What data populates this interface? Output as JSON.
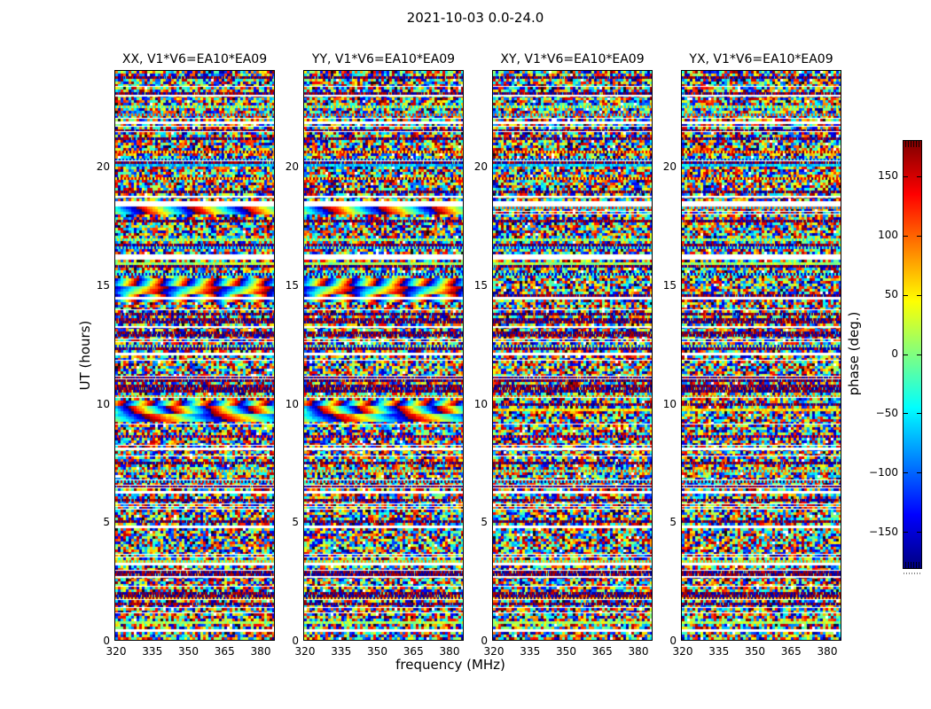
{
  "figure": {
    "title": "2021-10-03 0.0-24.0",
    "background": "#ffffff"
  },
  "axes": {
    "xlabel": "frequency (MHz)",
    "ylabel": "UT (hours)",
    "xtick_labels": [
      "320",
      "335",
      "350",
      "365",
      "380"
    ],
    "ytick_labels": [
      "0",
      "5",
      "10",
      "15",
      "20"
    ]
  },
  "panels": [
    {
      "title": "XX, V1*V6=EA10*EA09",
      "polarization": "XX",
      "baseline": "V1*V6=EA10*EA09"
    },
    {
      "title": "YY, V1*V6=EA10*EA09",
      "polarization": "YY",
      "baseline": "V1*V6=EA10*EA09"
    },
    {
      "title": "XY, V1*V6=EA10*EA09",
      "polarization": "XY",
      "baseline": "V1*V6=EA10*EA09"
    },
    {
      "title": "YX, V1*V6=EA10*EA09",
      "polarization": "YX",
      "baseline": "V1*V6=EA10*EA09"
    }
  ],
  "colorbar": {
    "label": "phase (deg.)",
    "tick_labels": [
      "150",
      "100",
      "50",
      "0",
      "−50",
      "−100",
      "−150"
    ],
    "tick_values": [
      150,
      100,
      50,
      0,
      -50,
      -100,
      -150
    ],
    "min": -180,
    "max": 180,
    "colormap": "jet"
  },
  "chart_data": {
    "type": "heatmap",
    "title": "2021-10-03 0.0-24.0",
    "date": "2021-10-03",
    "ut_range_hours": [
      0.0,
      24.0
    ],
    "panels": [
      {
        "title": "XX, V1*V6=EA10*EA09",
        "polarization": "XX"
      },
      {
        "title": "YY, V1*V6=EA10*EA09",
        "polarization": "YY"
      },
      {
        "title": "XY, V1*V6=EA10*EA09",
        "polarization": "XY"
      },
      {
        "title": "YX, V1*V6=EA10*EA09",
        "polarization": "YX"
      }
    ],
    "x": {
      "label": "frequency (MHz)",
      "range": [
        320,
        386
      ],
      "ticks": [
        320,
        335,
        350,
        365,
        380
      ]
    },
    "y": {
      "label": "UT (hours)",
      "range": [
        0,
        24
      ],
      "ticks": [
        0,
        5,
        10,
        15,
        20
      ]
    },
    "color": {
      "label": "phase (deg.)",
      "range": [
        -180,
        180
      ],
      "ticks": [
        150,
        100,
        50,
        0,
        -50,
        -100,
        -150
      ],
      "colormap": "jet"
    },
    "content": "per-sample interferometric visibility phase noise with horizontal flagged (white) rows and dense dark striped rows common to all four polarization panels",
    "features": {
      "coherent_phase_ramp_bands_ut_hours": [
        [
          9.15,
          10.05
        ],
        [
          14.2,
          15.25
        ],
        [
          17.95,
          18.3
        ]
      ],
      "coherent_bands_visible_in": [
        "XX",
        "YY"
      ],
      "flagged_rows": "thin white horizontal gaps scattered through all panels at common times"
    },
    "render": {
      "seed": 42,
      "rows": 214,
      "cols": 60
    }
  }
}
